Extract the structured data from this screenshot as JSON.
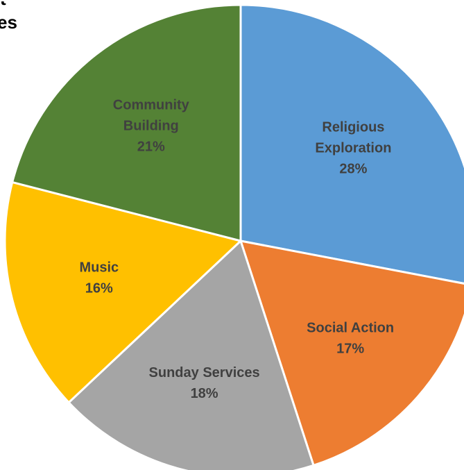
{
  "title_fragment": {
    "line1": "t",
    "line2": "es"
  },
  "chart_data": {
    "type": "pie",
    "start_angle_deg": 0,
    "direction": "clockwise",
    "label_color": "#404040",
    "slice_border_color": "#ffffff",
    "slices": [
      {
        "label": [
          "Religious",
          "Exploration"
        ],
        "percent_label": "28%",
        "value": 28,
        "color": "#5B9BD5"
      },
      {
        "label": [
          "Social Action"
        ],
        "percent_label": "17%",
        "value": 17,
        "color": "#ED7D31"
      },
      {
        "label": [
          "Sunday Services"
        ],
        "percent_label": "18%",
        "value": 18,
        "color": "#A5A5A5"
      },
      {
        "label": [
          "Music"
        ],
        "percent_label": "16%",
        "value": 16,
        "color": "#FFC000"
      },
      {
        "label": [
          "Community",
          "Building"
        ],
        "percent_label": "21%",
        "value": 21,
        "color": "#548235"
      }
    ]
  }
}
